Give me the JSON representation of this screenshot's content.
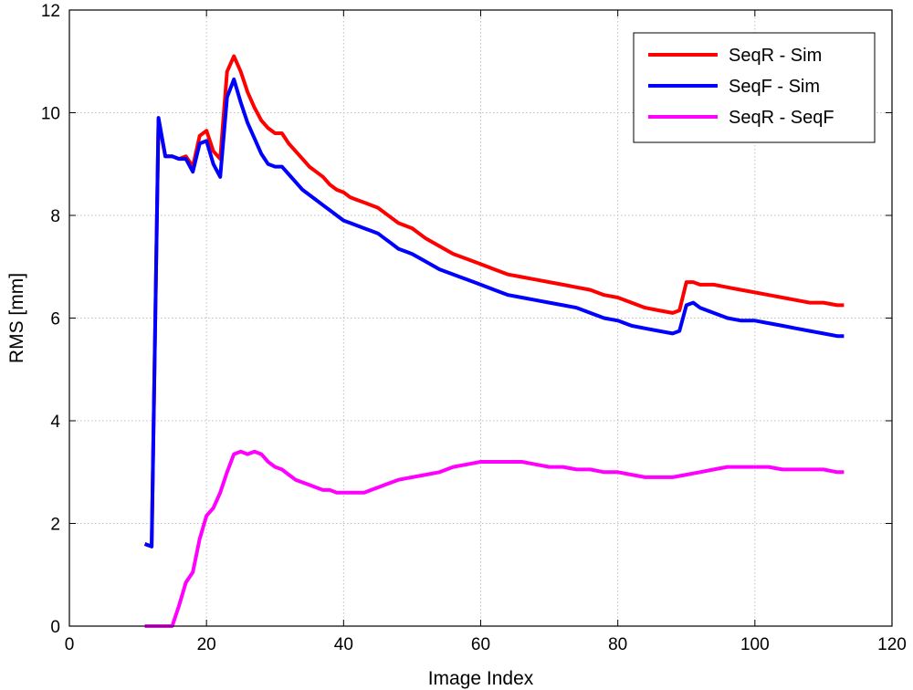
{
  "chart_data": {
    "type": "line",
    "title": "",
    "xlabel": "Image Index",
    "ylabel": "RMS [mm]",
    "xlim": [
      0,
      120
    ],
    "ylim": [
      0,
      12
    ],
    "xticks": [
      0,
      20,
      40,
      60,
      80,
      100,
      120
    ],
    "yticks": [
      0,
      2,
      4,
      6,
      8,
      10,
      12
    ],
    "xtick_labels": [
      "0",
      "20",
      "40",
      "60",
      "80",
      "100",
      "120"
    ],
    "ytick_labels": [
      "0",
      "2",
      "4",
      "6",
      "8",
      "10",
      "12"
    ],
    "grid": true,
    "legend_position": "top-right",
    "series": [
      {
        "name": "SeqR - Sim",
        "color": "#ff0000",
        "x": [
          11,
          12,
          13,
          14,
          15,
          16,
          17,
          18,
          19,
          20,
          21,
          22,
          23,
          24,
          25,
          26,
          27,
          28,
          29,
          30,
          31,
          32,
          33,
          34,
          35,
          36,
          37,
          38,
          39,
          40,
          41,
          42,
          43,
          44,
          45,
          46,
          47,
          48,
          49,
          50,
          52,
          54,
          56,
          58,
          60,
          62,
          64,
          66,
          68,
          70,
          72,
          74,
          76,
          78,
          80,
          82,
          84,
          86,
          88,
          89,
          90,
          91,
          92,
          94,
          96,
          98,
          100,
          102,
          104,
          106,
          108,
          110,
          112,
          113
        ],
        "y": [
          1.6,
          1.55,
          9.85,
          9.15,
          9.15,
          9.1,
          9.15,
          8.95,
          9.55,
          9.65,
          9.25,
          9.1,
          10.8,
          11.1,
          10.8,
          10.4,
          10.1,
          9.85,
          9.7,
          9.6,
          9.6,
          9.4,
          9.25,
          9.1,
          8.95,
          8.85,
          8.75,
          8.6,
          8.5,
          8.45,
          8.35,
          8.3,
          8.25,
          8.2,
          8.15,
          8.05,
          7.95,
          7.85,
          7.8,
          7.75,
          7.55,
          7.4,
          7.25,
          7.15,
          7.05,
          6.95,
          6.85,
          6.8,
          6.75,
          6.7,
          6.65,
          6.6,
          6.55,
          6.45,
          6.4,
          6.3,
          6.2,
          6.15,
          6.1,
          6.15,
          6.7,
          6.7,
          6.65,
          6.65,
          6.6,
          6.55,
          6.5,
          6.45,
          6.4,
          6.35,
          6.3,
          6.3,
          6.25,
          6.25
        ]
      },
      {
        "name": "SeqF - Sim",
        "color": "#0000ff",
        "x": [
          11,
          12,
          13,
          14,
          15,
          16,
          17,
          18,
          19,
          20,
          21,
          22,
          23,
          24,
          25,
          26,
          27,
          28,
          29,
          30,
          31,
          32,
          33,
          34,
          35,
          36,
          37,
          38,
          39,
          40,
          41,
          42,
          43,
          44,
          45,
          46,
          47,
          48,
          49,
          50,
          52,
          54,
          56,
          58,
          60,
          62,
          64,
          66,
          68,
          70,
          72,
          74,
          76,
          78,
          80,
          82,
          84,
          86,
          88,
          89,
          90,
          91,
          92,
          94,
          96,
          98,
          100,
          102,
          104,
          106,
          108,
          110,
          112,
          113
        ],
        "y": [
          1.6,
          1.55,
          9.9,
          9.15,
          9.15,
          9.1,
          9.1,
          8.85,
          9.4,
          9.45,
          9.0,
          8.75,
          10.3,
          10.65,
          10.2,
          9.8,
          9.5,
          9.2,
          9.0,
          8.95,
          8.95,
          8.8,
          8.65,
          8.5,
          8.4,
          8.3,
          8.2,
          8.1,
          8.0,
          7.9,
          7.85,
          7.8,
          7.75,
          7.7,
          7.65,
          7.55,
          7.45,
          7.35,
          7.3,
          7.25,
          7.1,
          6.95,
          6.85,
          6.75,
          6.65,
          6.55,
          6.45,
          6.4,
          6.35,
          6.3,
          6.25,
          6.2,
          6.1,
          6.0,
          5.95,
          5.85,
          5.8,
          5.75,
          5.7,
          5.75,
          6.25,
          6.3,
          6.2,
          6.1,
          6.0,
          5.95,
          5.95,
          5.9,
          5.85,
          5.8,
          5.75,
          5.7,
          5.65,
          5.65
        ]
      },
      {
        "name": "SeqR - SeqF",
        "color": "#ff00ff",
        "x": [
          11,
          12,
          13,
          14,
          15,
          16,
          17,
          18,
          19,
          20,
          21,
          22,
          23,
          24,
          25,
          26,
          27,
          28,
          29,
          30,
          31,
          32,
          33,
          34,
          35,
          36,
          37,
          38,
          39,
          40,
          41,
          42,
          43,
          44,
          45,
          46,
          47,
          48,
          50,
          52,
          54,
          56,
          58,
          60,
          62,
          64,
          66,
          68,
          70,
          72,
          74,
          76,
          78,
          80,
          82,
          84,
          86,
          88,
          90,
          92,
          94,
          96,
          98,
          100,
          102,
          104,
          106,
          108,
          110,
          112,
          113
        ],
        "y": [
          0.0,
          0.0,
          0.0,
          0.0,
          0.0,
          0.4,
          0.85,
          1.05,
          1.7,
          2.15,
          2.3,
          2.6,
          3.0,
          3.35,
          3.4,
          3.35,
          3.4,
          3.35,
          3.2,
          3.1,
          3.05,
          2.95,
          2.85,
          2.8,
          2.75,
          2.7,
          2.65,
          2.65,
          2.6,
          2.6,
          2.6,
          2.6,
          2.6,
          2.65,
          2.7,
          2.75,
          2.8,
          2.85,
          2.9,
          2.95,
          3.0,
          3.1,
          3.15,
          3.2,
          3.2,
          3.2,
          3.2,
          3.15,
          3.1,
          3.1,
          3.05,
          3.05,
          3.0,
          3.0,
          2.95,
          2.9,
          2.9,
          2.9,
          2.95,
          3.0,
          3.05,
          3.1,
          3.1,
          3.1,
          3.1,
          3.05,
          3.05,
          3.05,
          3.05,
          3.0,
          3.0
        ]
      }
    ]
  }
}
